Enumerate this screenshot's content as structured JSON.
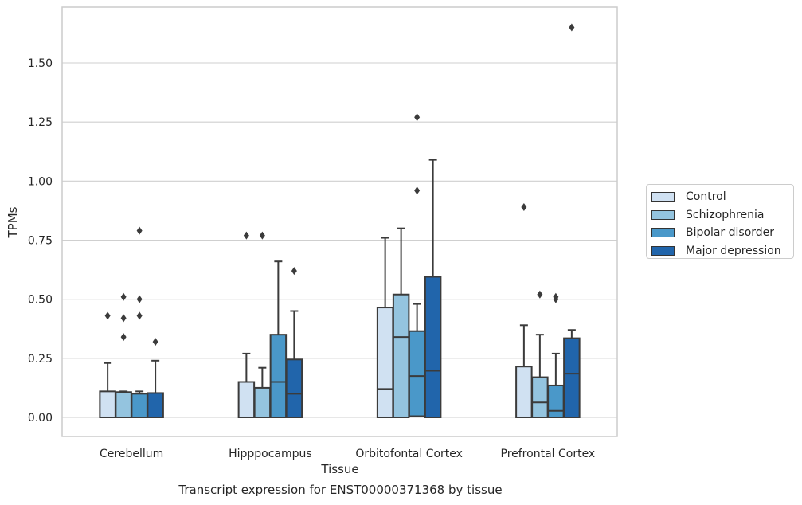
{
  "chart_data": {
    "type": "boxplot",
    "title": "",
    "caption": "Transcript expression for ENST00000371368 by tissue",
    "xlabel": "Tissue",
    "ylabel": "TPMs",
    "ylim": [
      -0.08,
      1.74
    ],
    "yticks": [
      0.0,
      0.25,
      0.5,
      0.75,
      1.0,
      1.25,
      1.5
    ],
    "ytick_labels": [
      "0.00",
      "0.25",
      "0.50",
      "0.75",
      "1.00",
      "1.25",
      "1.50"
    ],
    "categories": [
      "Cerebellum",
      "Hipppocampus",
      "Orbitofontal Cortex",
      "Prefrontal Cortex"
    ],
    "grid": "horizontal",
    "legend_position": "right",
    "series": [
      {
        "name": "Control",
        "color": "#d0e1f2",
        "boxes": [
          {
            "min": 0.0,
            "q1": 0.0,
            "median": 0.0,
            "q3": 0.11,
            "max": 0.23,
            "outliers": [
              0.43
            ]
          },
          {
            "min": 0.0,
            "q1": 0.0,
            "median": 0.0,
            "q3": 0.15,
            "max": 0.27,
            "outliers": [
              0.77
            ]
          },
          {
            "min": 0.0,
            "q1": 0.0,
            "median": 0.12,
            "q3": 0.465,
            "max": 0.76,
            "outliers": []
          },
          {
            "min": 0.0,
            "q1": 0.0,
            "median": 0.0,
            "q3": 0.215,
            "max": 0.39,
            "outliers": [
              0.89
            ]
          }
        ]
      },
      {
        "name": "Schizophrenia",
        "color": "#94c4df",
        "boxes": [
          {
            "min": 0.0,
            "q1": 0.0,
            "median": 0.0,
            "q3": 0.107,
            "max": 0.11,
            "outliers": [
              0.51,
              0.42,
              0.34
            ]
          },
          {
            "min": 0.0,
            "q1": 0.0,
            "median": 0.0,
            "q3": 0.125,
            "max": 0.21,
            "outliers": [
              0.77
            ]
          },
          {
            "min": 0.0,
            "q1": 0.0,
            "median": 0.34,
            "q3": 0.52,
            "max": 0.8,
            "outliers": []
          },
          {
            "min": 0.0,
            "q1": 0.0,
            "median": 0.063,
            "q3": 0.17,
            "max": 0.35,
            "outliers": [
              0.52
            ]
          }
        ]
      },
      {
        "name": "Bipolar disorder",
        "color": "#4a98c9",
        "boxes": [
          {
            "min": 0.0,
            "q1": 0.0,
            "median": 0.0,
            "q3": 0.1,
            "max": 0.11,
            "outliers": [
              0.79,
              0.5,
              0.43
            ]
          },
          {
            "min": 0.0,
            "q1": 0.0,
            "median": 0.15,
            "q3": 0.35,
            "max": 0.66,
            "outliers": []
          },
          {
            "min": 0.0,
            "q1": 0.005,
            "median": 0.175,
            "q3": 0.365,
            "max": 0.48,
            "outliers": [
              1.27,
              0.96
            ]
          },
          {
            "min": 0.0,
            "q1": 0.0,
            "median": 0.028,
            "q3": 0.135,
            "max": 0.27,
            "outliers": [
              0.51,
              0.5
            ]
          }
        ]
      },
      {
        "name": "Major depression",
        "color": "#2165ab",
        "boxes": [
          {
            "min": 0.0,
            "q1": 0.0,
            "median": 0.0,
            "q3": 0.103,
            "max": 0.24,
            "outliers": [
              0.32
            ]
          },
          {
            "min": 0.0,
            "q1": 0.0,
            "median": 0.1,
            "q3": 0.245,
            "max": 0.45,
            "outliers": [
              0.62
            ]
          },
          {
            "min": 0.0,
            "q1": 0.0,
            "median": 0.197,
            "q3": 0.595,
            "max": 1.09,
            "outliers": []
          },
          {
            "min": 0.0,
            "q1": 0.0,
            "median": 0.185,
            "q3": 0.335,
            "max": 0.37,
            "outliers": [
              1.65
            ]
          }
        ]
      }
    ]
  }
}
